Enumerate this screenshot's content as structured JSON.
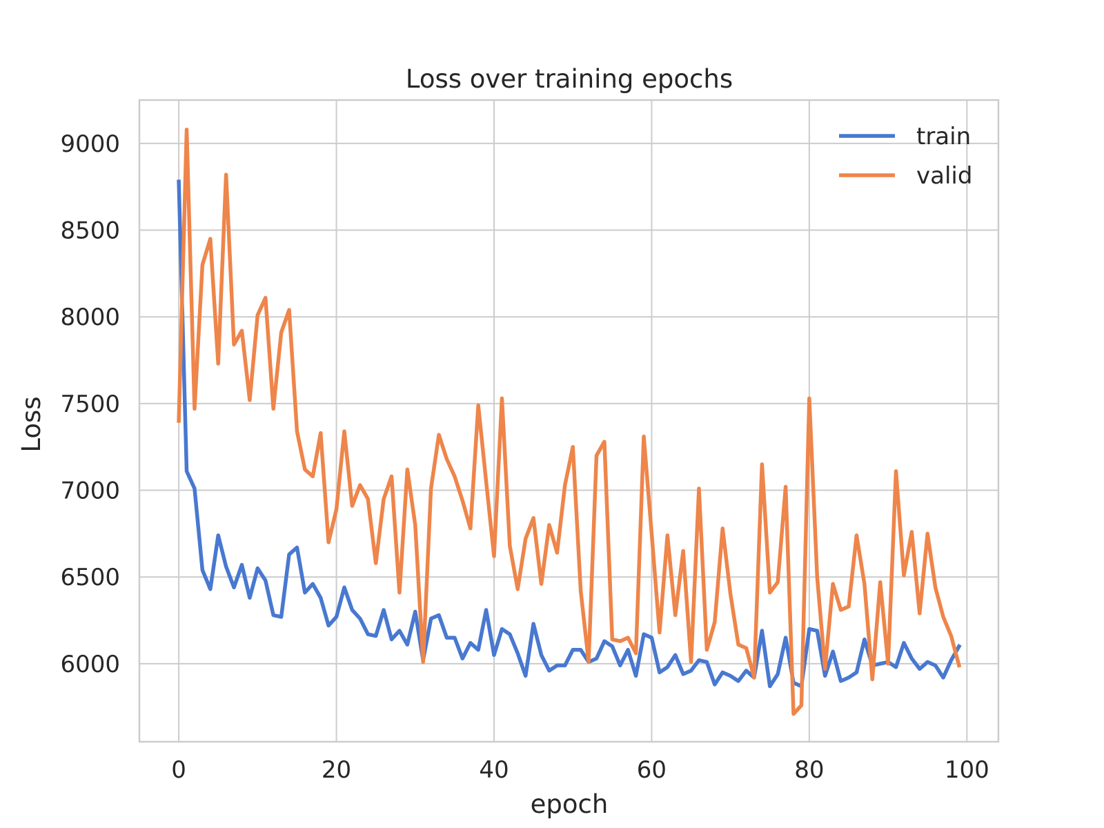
{
  "chart_data": {
    "type": "line",
    "title": "Loss over training epochs",
    "xlabel": "epoch",
    "ylabel": "Loss",
    "xlim": [
      -5,
      104
    ],
    "ylim": [
      5550,
      9250
    ],
    "xticks": [
      0,
      20,
      40,
      60,
      80,
      100
    ],
    "yticks": [
      6000,
      6500,
      7000,
      7500,
      8000,
      8500,
      9000
    ],
    "xtick_labels": [
      "0",
      "20",
      "40",
      "60",
      "80",
      "100"
    ],
    "ytick_labels": [
      "6000",
      "6500",
      "7000",
      "7500",
      "8000",
      "8500",
      "9000"
    ],
    "grid": true,
    "legend_position": "top-right",
    "series": [
      {
        "name": "train",
        "color": "#4878d0",
        "x": [
          0,
          1,
          2,
          3,
          4,
          5,
          6,
          7,
          8,
          9,
          10,
          11,
          12,
          13,
          14,
          15,
          16,
          17,
          18,
          19,
          20,
          21,
          22,
          23,
          24,
          25,
          26,
          27,
          28,
          29,
          30,
          31,
          32,
          33,
          34,
          35,
          36,
          37,
          38,
          39,
          40,
          41,
          42,
          43,
          44,
          45,
          46,
          47,
          48,
          49,
          50,
          51,
          52,
          53,
          54,
          55,
          56,
          57,
          58,
          59,
          60,
          61,
          62,
          63,
          64,
          65,
          66,
          67,
          68,
          69,
          70,
          71,
          72,
          73,
          74,
          75,
          76,
          77,
          78,
          79,
          80,
          81,
          82,
          83,
          84,
          85,
          86,
          87,
          88,
          89,
          90,
          91,
          92,
          93,
          94,
          95,
          96,
          97,
          98,
          99
        ],
        "values": [
          8780,
          7110,
          7010,
          6540,
          6430,
          6740,
          6560,
          6440,
          6570,
          6380,
          6550,
          6480,
          6280,
          6270,
          6630,
          6670,
          6410,
          6460,
          6380,
          6220,
          6270,
          6440,
          6310,
          6260,
          6170,
          6160,
          6310,
          6140,
          6190,
          6110,
          6300,
          6020,
          6260,
          6280,
          6150,
          6150,
          6030,
          6120,
          6080,
          6310,
          6050,
          6200,
          6170,
          6060,
          5930,
          6230,
          6050,
          5960,
          5990,
          5990,
          6080,
          6080,
          6010,
          6030,
          6130,
          6100,
          5990,
          6080,
          5930,
          6170,
          6150,
          5950,
          5980,
          6050,
          5940,
          5960,
          6020,
          6010,
          5880,
          5950,
          5930,
          5900,
          5960,
          5920,
          6190,
          5870,
          5940,
          6150,
          5890,
          5870,
          6200,
          6190,
          5930,
          6070,
          5900,
          5920,
          5950,
          6140,
          5990,
          6000,
          6010,
          5980,
          6120,
          6030,
          5970,
          6010,
          5990,
          5920,
          6020,
          6100
        ]
      },
      {
        "name": "valid",
        "color": "#ee854a",
        "x": [
          0,
          1,
          2,
          3,
          4,
          5,
          6,
          7,
          8,
          9,
          10,
          11,
          12,
          13,
          14,
          15,
          16,
          17,
          18,
          19,
          20,
          21,
          22,
          23,
          24,
          25,
          26,
          27,
          28,
          29,
          30,
          31,
          32,
          33,
          34,
          35,
          36,
          37,
          38,
          39,
          40,
          41,
          42,
          43,
          44,
          45,
          46,
          47,
          48,
          49,
          50,
          51,
          52,
          53,
          54,
          55,
          56,
          57,
          58,
          59,
          60,
          61,
          62,
          63,
          64,
          65,
          66,
          67,
          68,
          69,
          70,
          71,
          72,
          73,
          74,
          75,
          76,
          77,
          78,
          79,
          80,
          81,
          82,
          83,
          84,
          85,
          86,
          87,
          88,
          89,
          90,
          91,
          92,
          93,
          94,
          95,
          96,
          97,
          98,
          99
        ],
        "values": [
          7400,
          9080,
          7470,
          8300,
          8450,
          7730,
          8820,
          7840,
          7920,
          7520,
          8010,
          8110,
          7470,
          7910,
          8040,
          7340,
          7120,
          7080,
          7330,
          6700,
          6890,
          7340,
          6910,
          7030,
          6950,
          6580,
          6950,
          7080,
          6410,
          7120,
          6800,
          6010,
          7010,
          7320,
          7180,
          7080,
          6940,
          6780,
          7490,
          7050,
          6620,
          7530,
          6680,
          6430,
          6720,
          6840,
          6460,
          6800,
          6640,
          7030,
          7250,
          6420,
          6010,
          7200,
          7280,
          6140,
          6130,
          6150,
          6060,
          7310,
          6750,
          6180,
          6740,
          6280,
          6650,
          6010,
          7010,
          6080,
          6240,
          6780,
          6400,
          6110,
          6090,
          5920,
          7150,
          6410,
          6470,
          7020,
          5710,
          5760,
          7530,
          6500,
          5970,
          6460,
          6310,
          6330,
          6740,
          6460,
          5910,
          6470,
          6000,
          7110,
          6510,
          6760,
          6290,
          6750,
          6440,
          6270,
          6160,
          5990
        ]
      }
    ]
  }
}
